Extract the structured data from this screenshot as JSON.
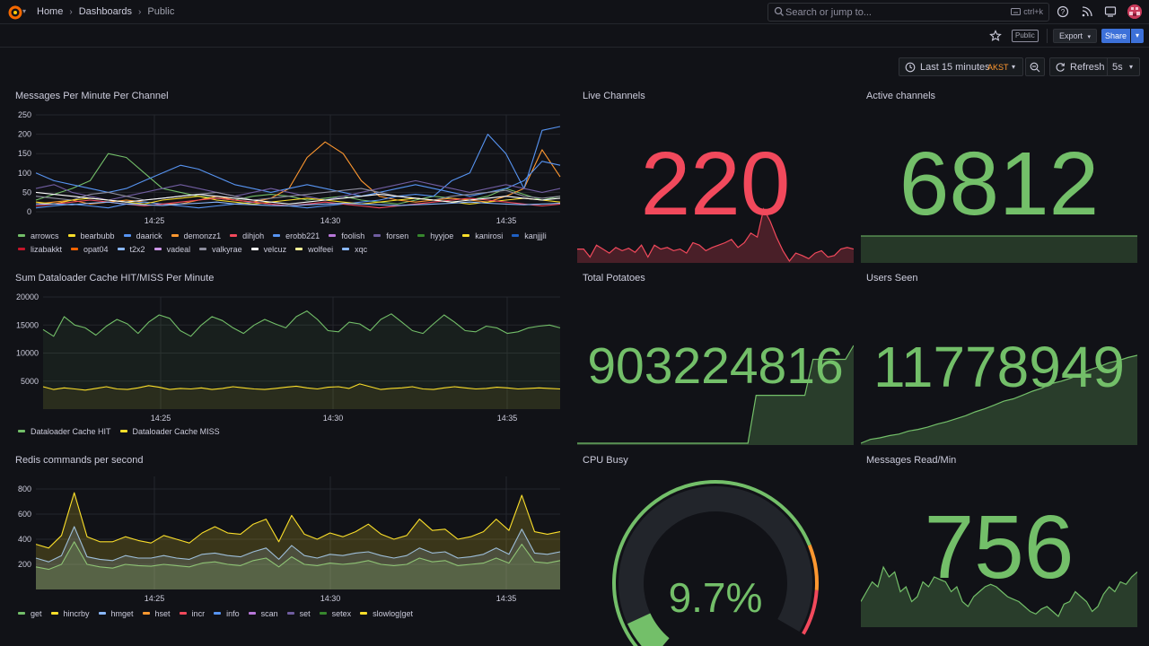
{
  "nav": {
    "breadcrumbs": [
      "Home",
      "Dashboards",
      "Public"
    ],
    "search_placeholder": "Search or jump to...",
    "search_shortcut": "ctrl+k"
  },
  "toolbar": {
    "public_badge": "Public",
    "export_label": "Export",
    "share_label": "Share"
  },
  "controls": {
    "time_range": "Last 15 minutes",
    "timezone": "AKST",
    "refresh_label": "Refresh",
    "refresh_interval": "5s"
  },
  "colors": {
    "green": "#73bf69",
    "red": "#f2495c",
    "yellow": "#fade2a",
    "orange": "#ff9830"
  },
  "panels": {
    "messages": {
      "title": "Messages Per Minute Per Channel",
      "legend": [
        {
          "name": "arrowcs",
          "color": "#73bf69"
        },
        {
          "name": "bearbubb",
          "color": "#fade2a"
        },
        {
          "name": "daarick",
          "color": "#5794f2"
        },
        {
          "name": "demonzz1",
          "color": "#ff9830"
        },
        {
          "name": "dihjoh",
          "color": "#f2495c"
        },
        {
          "name": "erobb221",
          "color": "#5794f2"
        },
        {
          "name": "foolish",
          "color": "#b877d9"
        },
        {
          "name": "forsen",
          "color": "#705da0"
        },
        {
          "name": "hyyjoe",
          "color": "#37872d"
        },
        {
          "name": "kanirosi",
          "color": "#fade2a"
        },
        {
          "name": "kanjjjli",
          "color": "#1f60c4"
        },
        {
          "name": "lizabakkt",
          "color": "#c4162a"
        },
        {
          "name": "opat04",
          "color": "#fa6400"
        },
        {
          "name": "t2x2",
          "color": "#8ab8ff"
        },
        {
          "name": "vadeal",
          "color": "#ca95e5"
        },
        {
          "name": "valkyrae",
          "color": "#8e8e9e"
        },
        {
          "name": "velcuz",
          "color": "#ffffff"
        },
        {
          "name": "wolfeei",
          "color": "#fff899"
        },
        {
          "name": "xqc",
          "color": "#8ab8ff"
        }
      ]
    },
    "cache": {
      "title": "Sum Dataloader Cache HIT/MISS Per Minute",
      "legend": [
        {
          "name": "Dataloader Cache HIT",
          "color": "#73bf69"
        },
        {
          "name": "Dataloader Cache MISS",
          "color": "#fade2a"
        }
      ]
    },
    "redis": {
      "title": "Redis commands per second",
      "legend": [
        {
          "name": "get",
          "color": "#73bf69"
        },
        {
          "name": "hincrby",
          "color": "#fade2a"
        },
        {
          "name": "hmget",
          "color": "#8ab8ff"
        },
        {
          "name": "hset",
          "color": "#ff9830"
        },
        {
          "name": "incr",
          "color": "#f2495c"
        },
        {
          "name": "info",
          "color": "#5794f2"
        },
        {
          "name": "scan",
          "color": "#b877d9"
        },
        {
          "name": "set",
          "color": "#705da0"
        },
        {
          "name": "setex",
          "color": "#37872d"
        },
        {
          "name": "slowlog|get",
          "color": "#fade2a"
        }
      ]
    },
    "live_channels": {
      "title": "Live Channels",
      "value": "220"
    },
    "active_channels": {
      "title": "Active channels",
      "value": "6812"
    },
    "total_potatoes": {
      "title": "Total Potatoes",
      "value": "903224816"
    },
    "users_seen": {
      "title": "Users Seen",
      "value": "11778949"
    },
    "cpu_busy": {
      "title": "CPU Busy",
      "value": "9.7%",
      "percent": 9.7
    },
    "messages_read": {
      "title": "Messages Read/Min",
      "value": "756"
    }
  },
  "chart_data": [
    {
      "type": "line",
      "title": "Messages Per Minute Per Channel",
      "x_ticks": [
        "14:25",
        "14:30",
        "14:35"
      ],
      "ylim": [
        0,
        250
      ],
      "y_ticks": [
        0,
        50,
        100,
        150,
        200,
        250
      ],
      "series": [
        {
          "name": "arrowcs",
          "values": [
            30,
            45,
            60,
            80,
            150,
            140,
            100,
            60,
            50,
            40,
            35,
            30,
            40,
            45,
            40,
            30,
            35,
            40,
            30,
            25,
            20,
            30,
            40,
            35,
            30,
            40,
            60,
            45,
            30,
            40
          ]
        },
        {
          "name": "demonzz1",
          "values": [
            20,
            25,
            30,
            20,
            25,
            30,
            25,
            20,
            20,
            30,
            40,
            30,
            25,
            35,
            60,
            140,
            180,
            150,
            80,
            40,
            30,
            25,
            30,
            35,
            30,
            25,
            40,
            60,
            160,
            90
          ]
        },
        {
          "name": "erobb221",
          "values": [
            10,
            15,
            20,
            15,
            10,
            20,
            25,
            20,
            15,
            10,
            15,
            20,
            25,
            20,
            15,
            10,
            15,
            20,
            25,
            30,
            40,
            45,
            40,
            80,
            100,
            200,
            150,
            60,
            210,
            220
          ]
        },
        {
          "name": "daarick",
          "values": [
            100,
            80,
            70,
            60,
            50,
            60,
            80,
            100,
            120,
            110,
            90,
            70,
            60,
            50,
            60,
            70,
            60,
            50,
            40,
            50,
            60,
            70,
            60,
            50,
            40,
            50,
            60,
            80,
            130,
            120
          ]
        },
        {
          "name": "forsen",
          "values": [
            60,
            70,
            50,
            40,
            30,
            40,
            50,
            60,
            70,
            60,
            50,
            40,
            50,
            60,
            50,
            40,
            30,
            40,
            50,
            60,
            70,
            80,
            70,
            60,
            50,
            60,
            70,
            60,
            50,
            60
          ]
        },
        {
          "name": "valkyrae",
          "values": [
            40,
            35,
            30,
            45,
            50,
            40,
            30,
            35,
            40,
            45,
            50,
            40,
            30,
            35,
            40,
            45,
            50,
            55,
            60,
            50,
            40,
            35,
            30,
            40,
            45,
            50,
            55,
            40,
            35,
            40
          ]
        },
        {
          "name": "kanirosi",
          "values": [
            25,
            20,
            30,
            35,
            30,
            25,
            20,
            30,
            35,
            40,
            30,
            25,
            20,
            25,
            30,
            35,
            30,
            25,
            20,
            25,
            30,
            35,
            30,
            25,
            20,
            25,
            30,
            35,
            30,
            25
          ]
        },
        {
          "name": "dihjoh",
          "values": [
            15,
            20,
            25,
            30,
            25,
            20,
            15,
            20,
            25,
            30,
            35,
            30,
            25,
            20,
            15,
            20,
            25,
            20,
            15,
            10,
            15,
            20,
            25,
            30,
            35,
            30,
            25,
            20,
            15,
            20
          ]
        },
        {
          "name": "velcuz",
          "values": [
            50,
            45,
            40,
            35,
            30,
            25,
            30,
            35,
            40,
            45,
            40,
            35,
            30,
            25,
            20,
            25,
            30,
            35,
            40,
            45,
            40,
            35,
            30,
            25,
            30,
            35,
            40,
            35,
            30,
            35
          ]
        },
        {
          "name": "xqc",
          "values": [
            20,
            20,
            18,
            22,
            25,
            20,
            18,
            16,
            20,
            22,
            25,
            20,
            18,
            16,
            15,
            18,
            20,
            22,
            20,
            18,
            16,
            18,
            20,
            22,
            25,
            22,
            20,
            18,
            20,
            22
          ]
        }
      ]
    },
    {
      "type": "area",
      "title": "Sum Dataloader Cache HIT/MISS Per Minute",
      "x_ticks": [
        "14:25",
        "14:30",
        "14:35"
      ],
      "ylim": [
        0,
        20000
      ],
      "y_ticks": [
        5000,
        10000,
        15000,
        20000
      ],
      "series": [
        {
          "name": "Dataloader Cache HIT",
          "values": [
            14200,
            13000,
            16500,
            15000,
            14500,
            13200,
            14800,
            16000,
            15200,
            13500,
            15500,
            16800,
            16200,
            14000,
            13000,
            15000,
            16500,
            15800,
            14500,
            13500,
            15000,
            16000,
            15200,
            14500,
            16500,
            17500,
            16000,
            14000,
            13800,
            15500,
            15200,
            14000,
            16000,
            17000,
            15500,
            14000,
            13500,
            15200,
            16800,
            15500,
            14000,
            13800,
            14800,
            14500,
            13500,
            13800,
            14500,
            14800,
            15000,
            14500
          ]
        },
        {
          "name": "Dataloader Cache MISS",
          "values": [
            4000,
            3500,
            3800,
            3600,
            3400,
            3700,
            4000,
            3600,
            3500,
            3800,
            4200,
            3900,
            3500,
            3700,
            3600,
            3800,
            3500,
            3700,
            4000,
            3800,
            3600,
            3500,
            3700,
            3900,
            4100,
            3800,
            3600,
            3900,
            4000,
            3700,
            4500,
            4000,
            3500,
            3700,
            3800,
            4000,
            3600,
            3500,
            3800,
            4000,
            3800,
            3600,
            3700,
            3900,
            3800,
            3600,
            3700,
            3800,
            3700,
            3600
          ]
        }
      ]
    },
    {
      "type": "area",
      "title": "Redis commands per second",
      "x_ticks": [
        "14:25",
        "14:30",
        "14:35"
      ],
      "ylim": [
        0,
        900
      ],
      "y_ticks": [
        200,
        400,
        600,
        800
      ],
      "series": [
        {
          "name": "get",
          "values": [
            180,
            160,
            200,
            380,
            200,
            180,
            170,
            200,
            190,
            185,
            200,
            190,
            180,
            210,
            220,
            200,
            190,
            230,
            250,
            180,
            260,
            200,
            190,
            210,
            200,
            210,
            230,
            200,
            190,
            200,
            250,
            220,
            230,
            190,
            200,
            210,
            250,
            210,
            360,
            220,
            210,
            230
          ]
        },
        {
          "name": "hmget",
          "values": [
            250,
            220,
            270,
            500,
            260,
            240,
            230,
            270,
            250,
            250,
            270,
            250,
            240,
            280,
            290,
            270,
            260,
            300,
            330,
            240,
            350,
            270,
            250,
            280,
            270,
            290,
            300,
            270,
            250,
            270,
            330,
            290,
            300,
            250,
            260,
            280,
            330,
            280,
            480,
            290,
            280,
            300
          ]
        },
        {
          "name": "hincrby",
          "values": [
            360,
            330,
            430,
            770,
            420,
            380,
            380,
            420,
            390,
            370,
            430,
            400,
            370,
            450,
            500,
            450,
            440,
            520,
            560,
            380,
            590,
            440,
            400,
            450,
            420,
            460,
            520,
            440,
            400,
            430,
            560,
            470,
            480,
            400,
            420,
            460,
            560,
            470,
            750,
            460,
            440,
            460
          ]
        }
      ]
    },
    {
      "type": "area",
      "title": "Live Channels",
      "series": [
        {
          "name": "",
          "values": [
            170,
            170,
            160,
            175,
            170,
            165,
            172,
            168,
            171,
            166,
            175,
            160,
            175,
            170,
            172,
            168,
            170,
            165,
            178,
            175,
            168,
            172,
            175,
            178,
            182,
            172,
            178,
            190,
            185,
            220,
            205,
            185,
            168,
            155,
            165,
            162,
            158,
            165,
            168,
            160,
            162,
            170,
            172,
            170
          ]
        }
      ]
    },
    {
      "type": "area",
      "title": "Total Potatoes",
      "series": [
        {
          "name": "",
          "values": [
            903224000,
            903224000,
            903224000,
            903224000,
            903224000,
            903224000,
            903224000,
            903224000,
            903224000,
            903224000,
            903224000,
            903224000,
            903224000,
            903224000,
            903224000,
            903224000,
            903224000,
            903224000,
            903224000,
            903224000,
            903224000,
            903224000,
            903224400,
            903224400,
            903224400,
            903224400,
            903224400,
            903224400,
            903224400,
            903224700,
            903224700,
            903224700,
            903224700,
            903224700,
            903224816
          ]
        }
      ]
    },
    {
      "type": "area",
      "title": "Users Seen",
      "series": [
        {
          "name": "",
          "values": [
            11777800,
            11777850,
            11777870,
            11777900,
            11777920,
            11777960,
            11777980,
            11778010,
            11778050,
            11778080,
            11778120,
            11778160,
            11778210,
            11778250,
            11778300,
            11778350,
            11778380,
            11778430,
            11778480,
            11778520,
            11778580,
            11778610,
            11778650,
            11778700,
            11778760,
            11778800,
            11778850,
            11778880,
            11778920,
            11778949
          ]
        }
      ]
    },
    {
      "type": "area",
      "title": "Messages Read/Min",
      "series": [
        {
          "name": "",
          "values": [
            740,
            760,
            780,
            770,
            810,
            790,
            800,
            760,
            770,
            740,
            750,
            780,
            770,
            790,
            785,
            780,
            760,
            770,
            740,
            730,
            750,
            760,
            770,
            775,
            770,
            760,
            750,
            745,
            740,
            730,
            720,
            715,
            725,
            730,
            720,
            710,
            735,
            740,
            760,
            750,
            740,
            720,
            730,
            755,
            770,
            760,
            780,
            775,
            790,
            800
          ]
        }
      ]
    }
  ]
}
